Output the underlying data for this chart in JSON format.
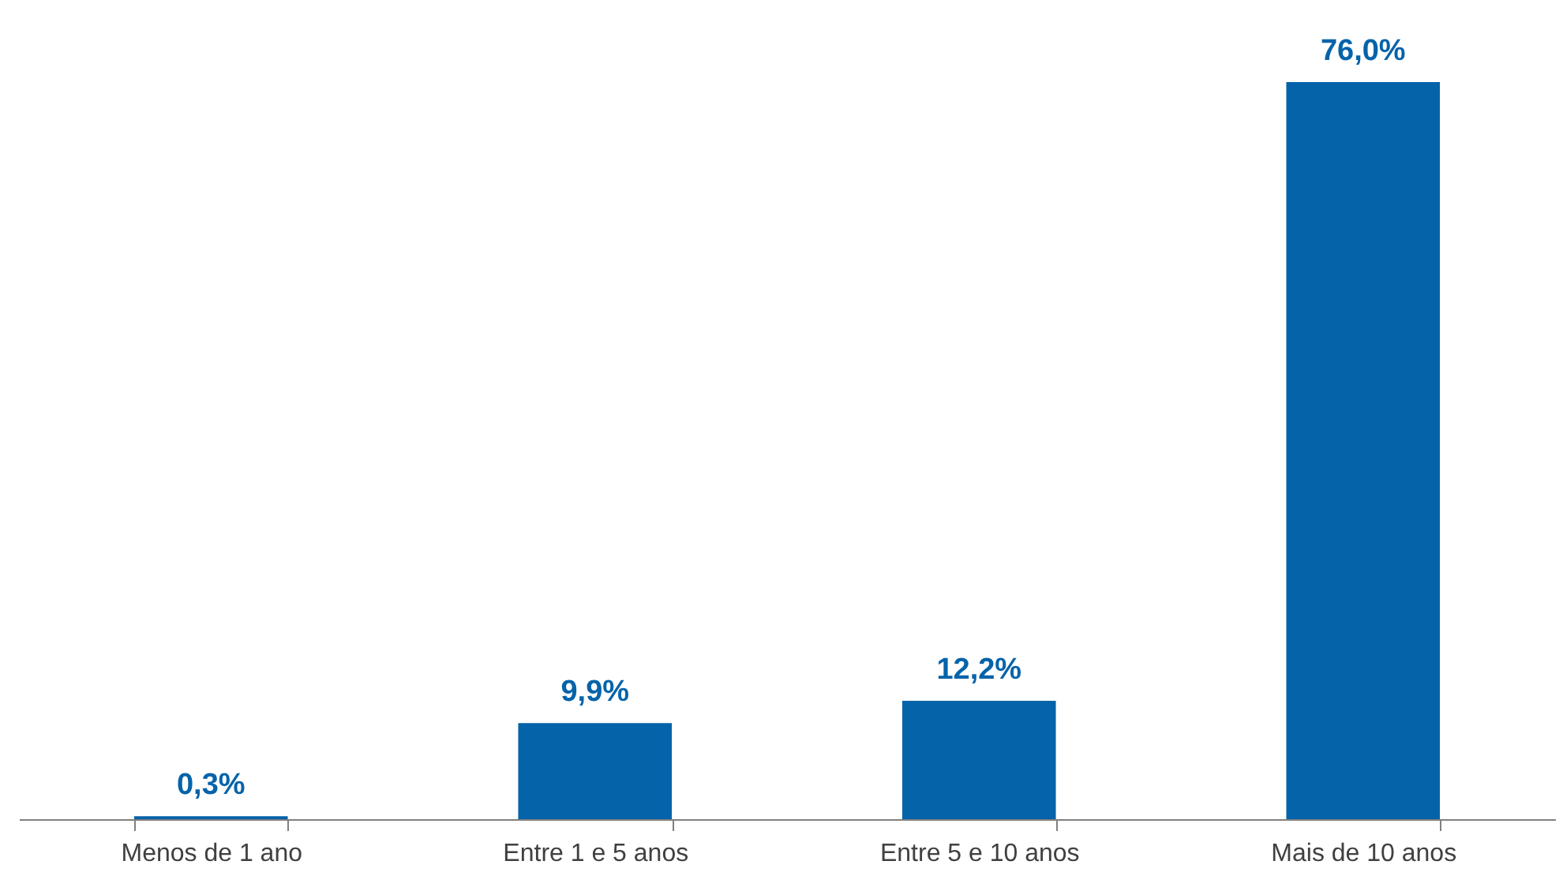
{
  "chart_data": {
    "type": "bar",
    "categories": [
      "Menos de 1 ano",
      "Entre 1 e 5 anos",
      "Entre 5 e 10 anos",
      "Mais de 10 anos"
    ],
    "values": [
      0.3,
      9.9,
      12.2,
      76.0
    ],
    "value_labels": [
      "0,3%",
      "9,9%",
      "12,2%",
      "76,0%"
    ],
    "color": "#0563aa",
    "tick_labels": "x"
  }
}
